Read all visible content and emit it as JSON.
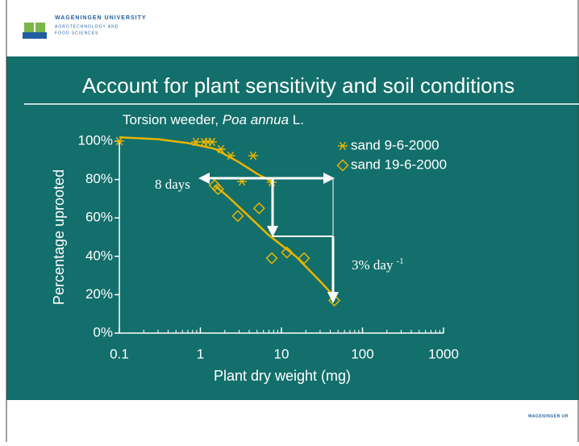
{
  "header": {
    "university": "WAGENINGEN UNIVERSITY",
    "dept_line1": "AGROTECHNOLOGY AND",
    "dept_line2": "FOOD SCIENCES",
    "footer_logo": "WAGENINGEN UR"
  },
  "slide_title": "Account for plant sensitivity and soil conditions",
  "chart_data": {
    "type": "scatter",
    "subtitle": [
      "Torsion weeder, ",
      "Poa annua",
      " L."
    ],
    "xlabel": "Plant dry weight (mg)",
    "ylabel": "Percentage uprooted",
    "xscale": "log",
    "xlim": [
      0.1,
      1000
    ],
    "xticks": [
      0.1,
      1,
      10,
      100,
      1000
    ],
    "ylim": [
      0,
      100
    ],
    "yticks": [
      {
        "value": 0,
        "label": "0%"
      },
      {
        "value": 20,
        "label": "20%"
      },
      {
        "value": 40,
        "label": "40%"
      },
      {
        "value": 60,
        "label": "60%"
      },
      {
        "value": 80,
        "label": "80%"
      },
      {
        "value": 100,
        "label": "100%"
      }
    ],
    "legend": "upper right",
    "series": [
      {
        "name": "sand 9-6-2000",
        "color": "#e8b400",
        "marker": "asterisk",
        "x": [
          0.1,
          0.88,
          1.11,
          1.24,
          1.39,
          1.79,
          2.36,
          3.26,
          4.48,
          7.6
        ],
        "values": [
          100,
          99.6,
          99.6,
          99.6,
          99.6,
          95.8,
          92.4,
          79,
          92.4,
          78.6
        ]
      },
      {
        "name": "sand 19-6-2000",
        "color": "#e8b400",
        "marker": "diamond",
        "x": [
          1.5,
          1.65,
          2.9,
          5.3,
          7.6,
          11.7,
          19,
          45
        ],
        "values": [
          77,
          75,
          61,
          65,
          39,
          42,
          39,
          17
        ]
      }
    ],
    "fit_lines": [
      {
        "color": "#e8b400",
        "x": [
          0.1,
          0.3,
          0.7,
          1.5,
          3,
          5,
          7.6
        ],
        "values": [
          102,
          101,
          99,
          96,
          89,
          83,
          79
        ]
      },
      {
        "color": "#e8b400",
        "x": [
          1.5,
          2.2,
          3.5,
          7,
          15,
          30,
          45
        ],
        "values": [
          77,
          71,
          63,
          51,
          40,
          27,
          19
        ]
      }
    ],
    "annotations": {
      "days": "8 days",
      "rate": "3% day",
      "rate_exp": "-1"
    }
  }
}
